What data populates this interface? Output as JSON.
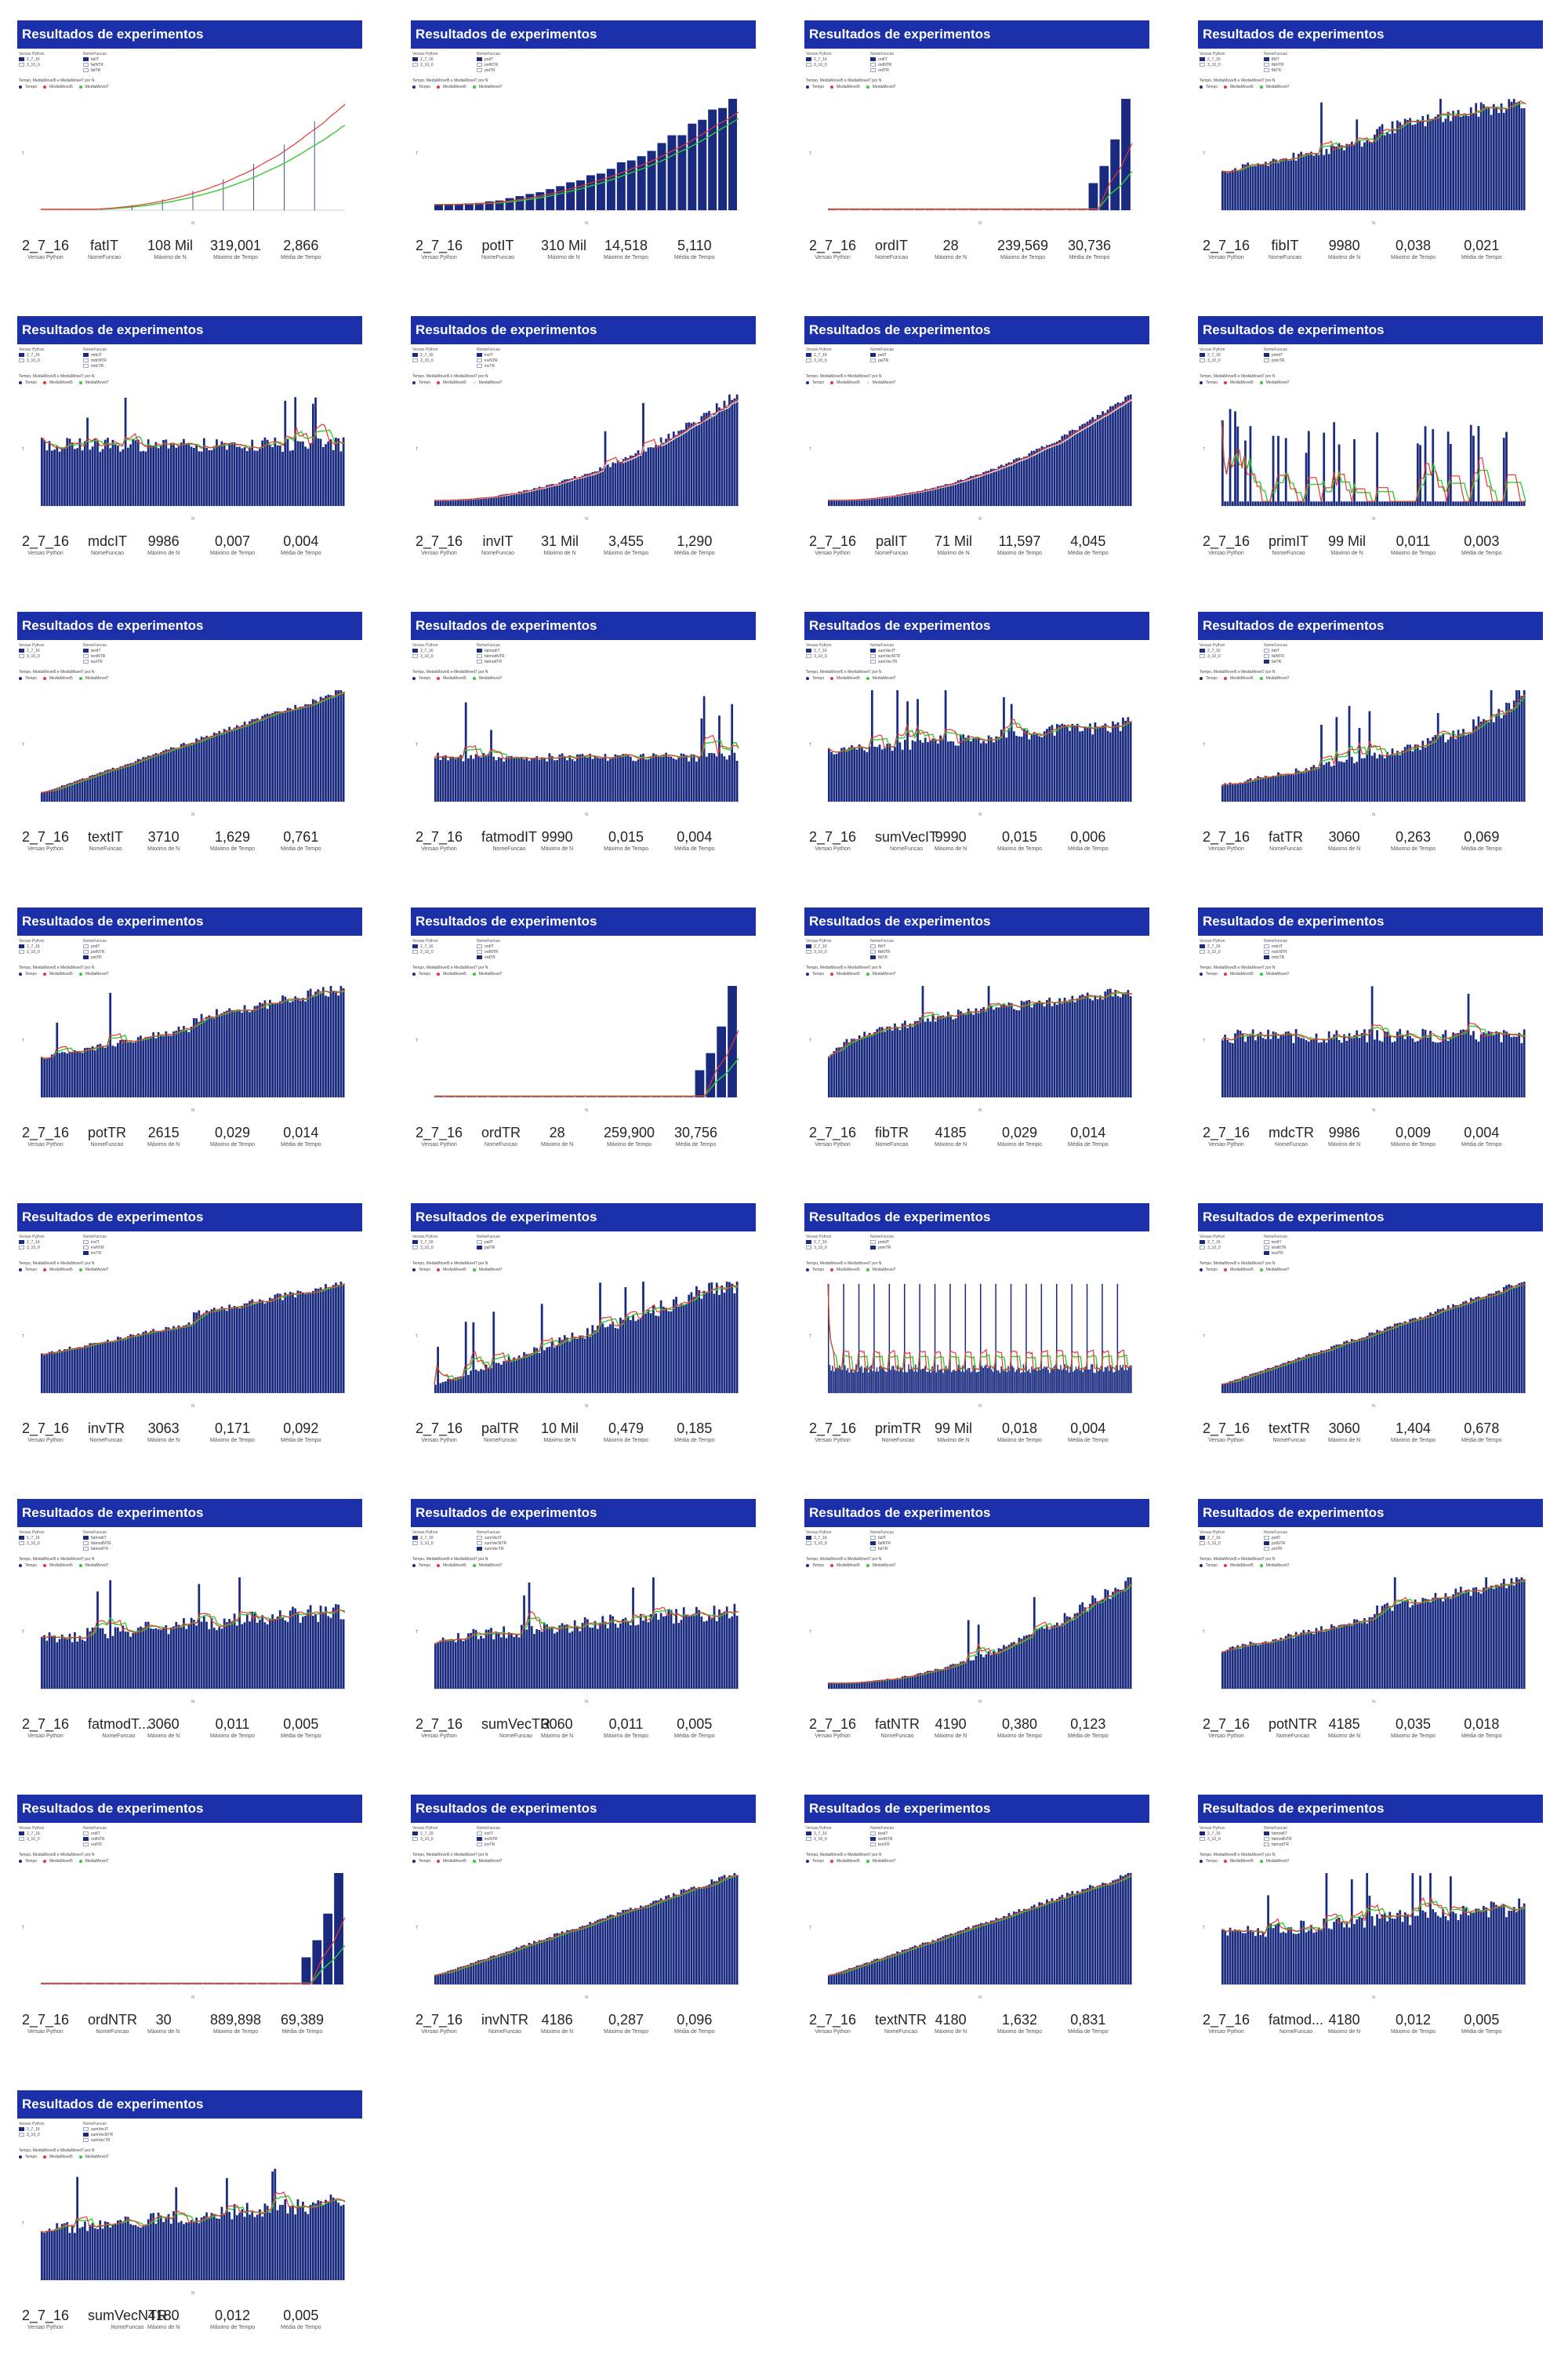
{
  "card_title": "Resultados de experimentos",
  "kpi_labels": {
    "version": "Versao Python",
    "function": "NomeFuncao",
    "n": "Máximo de N",
    "max_time": "Máximo de Tempo",
    "avg_time": "Média de Tempo"
  },
  "legend_headers": {
    "version": "Versao Python",
    "function": "NomeFuncao"
  },
  "version_entries": [
    "2_7_16",
    "3_10_0"
  ],
  "axis_label_y": "T",
  "axis_label_x": "N",
  "chart_title_text": "Tempo, MediaMovel5 e MediaMovel7 por N",
  "series_labels": {
    "time": "Tempo",
    "ma5": "MediaMovel5",
    "ma7": "MediaMovel7"
  },
  "colors": {
    "title_bar": "#1b2fa8",
    "bar": "#1a2b7f",
    "ma5": "#e53935",
    "ma7": "#33cc33",
    "white_line": "#e8e8e8"
  },
  "chart_data": [
    {
      "function": "fatIT",
      "version": "2_7_16",
      "max_n": "108 Mil",
      "max_time": "319,001",
      "avg_time": "2,866",
      "legend": [
        "fatIT",
        "fatNTR",
        "fatTR"
      ],
      "type": "line",
      "shape": "exp",
      "noise": 0.02,
      "spikes": 0.0,
      "xmax": 108000,
      "bars": false,
      "ma7": "#33cc33"
    },
    {
      "function": "potIT",
      "version": "2_7_16",
      "max_n": "310 Mil",
      "max_time": "14,518",
      "avg_time": "5,110",
      "legend": [
        "potIT",
        "potNTR",
        "potTR"
      ],
      "type": "bar",
      "shape": "quad",
      "noise": 0.04,
      "spikes": 0.0,
      "xmax": 310000,
      "bars": "few",
      "ma7": "#33cc33"
    },
    {
      "function": "ordIT",
      "version": "2_7_16",
      "max_n": "28",
      "max_time": "239,569",
      "avg_time": "30,736",
      "legend": [
        "ordIT",
        "ordNTR",
        "ordTR"
      ],
      "type": "bar",
      "shape": "steep",
      "noise": 0.0,
      "spikes": 0.0,
      "xmax": 28,
      "bars": "huge",
      "ma7": "#33cc33"
    },
    {
      "function": "fibIT",
      "version": "2_7_16",
      "max_n": "9980",
      "max_time": "0,038",
      "avg_time": "0,021",
      "legend": [
        "fibIT",
        "fibNTR",
        "fibTR"
      ],
      "type": "bar",
      "shape": "linear2",
      "noise": 0.08,
      "spikes": 0.02,
      "xmax": 9980,
      "bars": true,
      "ma7": "#33cc33"
    },
    {
      "function": "mdcIT",
      "version": "2_7_16",
      "max_n": "9986",
      "max_time": "0,007",
      "avg_time": "0,004",
      "legend": [
        "mdcIT",
        "mdcNTR",
        "mdcTR"
      ],
      "type": "bar",
      "shape": "flat",
      "noise": 0.12,
      "spikes": 0.05,
      "xmax": 9986,
      "bars": true,
      "ma7": "#33cc33"
    },
    {
      "function": "invIT",
      "version": "2_7_16",
      "max_n": "31 Mil",
      "max_time": "3,455",
      "avg_time": "1,290",
      "legend": [
        "invIT",
        "invNTR",
        "invTR"
      ],
      "type": "bar",
      "shape": "quad",
      "noise": 0.06,
      "spikes": 0.03,
      "xmax": 31000,
      "bars": true,
      "ma7": "#e8e8e8"
    },
    {
      "function": "palIT",
      "version": "2_7_16",
      "max_n": "71 Mil",
      "max_time": "11,597",
      "avg_time": "4,045",
      "legend": [
        "palIT",
        "palTR"
      ],
      "type": "bar",
      "shape": "quad",
      "noise": 0.03,
      "spikes": 0.0,
      "xmax": 71000,
      "bars": true,
      "ma7": "#e8e8e8"
    },
    {
      "function": "primIT",
      "version": "2_7_16",
      "max_n": "99 Mil",
      "max_time": "0,011",
      "avg_time": "0,003",
      "legend": [
        "primIT",
        "primTR"
      ],
      "type": "bar",
      "shape": "decay",
      "noise": 0.15,
      "spikes": 0.08,
      "xmax": 99000,
      "bars": "sparse",
      "ma7": "#33cc33"
    },
    {
      "function": "textIT",
      "version": "2_7_16",
      "max_n": "3710",
      "max_time": "1,629",
      "avg_time": "0,761",
      "legend": [
        "textIT",
        "textNTR",
        "textTR"
      ],
      "type": "bar",
      "shape": "linear",
      "noise": 0.03,
      "spikes": 0.0,
      "xmax": 3710,
      "bars": true,
      "ma7": "#33cc33"
    },
    {
      "function": "fatmodIT",
      "version": "2_7_16",
      "max_n": "9990",
      "max_time": "0,015",
      "avg_time": "0,004",
      "legend": [
        "fatmodIT",
        "fatmodNTR",
        "fatmodTR"
      ],
      "type": "bar",
      "shape": "flatlow",
      "noise": 0.1,
      "spikes": 0.04,
      "xmax": 9990,
      "bars": true,
      "ma7": "#33cc33"
    },
    {
      "function": "sumVecIT",
      "version": "2_7_16",
      "max_n": "9990",
      "max_time": "0,015",
      "avg_time": "0,006",
      "legend": [
        "sumVecIT",
        "sumVecNTR",
        "sumVecTR"
      ],
      "type": "bar",
      "shape": "flatrise",
      "noise": 0.1,
      "spikes": 0.04,
      "xmax": 9990,
      "bars": true,
      "ma7": "#33cc33"
    },
    {
      "function": "fatTR",
      "version": "2_7_16",
      "max_n": "3060",
      "max_time": "0,263",
      "avg_time": "0,069",
      "legend": [
        "fatIT",
        "fatNTR",
        "fatTR"
      ],
      "type": "bar",
      "shape": "exp2",
      "noise": 0.1,
      "spikes": 0.05,
      "xmax": 3060,
      "bars": true,
      "ma7": "#33cc33"
    },
    {
      "function": "potTR",
      "version": "2_7_16",
      "max_n": "2615",
      "max_time": "0,029",
      "avg_time": "0,014",
      "legend": [
        "potIT",
        "potNTR",
        "potTR"
      ],
      "type": "bar",
      "shape": "linear2",
      "noise": 0.06,
      "spikes": 0.02,
      "xmax": 2615,
      "bars": true,
      "ma7": "#33cc33"
    },
    {
      "function": "ordTR",
      "version": "2_7_16",
      "max_n": "28",
      "max_time": "259,900",
      "avg_time": "30,756",
      "legend": [
        "ordIT",
        "ordNTR",
        "ordTR"
      ],
      "type": "bar",
      "shape": "steep",
      "noise": 0.0,
      "spikes": 0.0,
      "xmax": 28,
      "bars": "huge",
      "ma7": "#33cc33"
    },
    {
      "function": "fibTR",
      "version": "2_7_16",
      "max_n": "4185",
      "max_time": "0,029",
      "avg_time": "0,014",
      "legend": [
        "fibIT",
        "fibNTR",
        "fibTR"
      ],
      "type": "bar",
      "shape": "log",
      "noise": 0.06,
      "spikes": 0.02,
      "xmax": 4185,
      "bars": true,
      "ma7": "#33cc33"
    },
    {
      "function": "mdcTR",
      "version": "2_7_16",
      "max_n": "9986",
      "max_time": "0,009",
      "avg_time": "0,004",
      "legend": [
        "mdcIT",
        "mdcNTR",
        "mdcTR"
      ],
      "type": "bar",
      "shape": "flat",
      "noise": 0.12,
      "spikes": 0.05,
      "xmax": 9986,
      "bars": true,
      "ma7": "#33cc33"
    },
    {
      "function": "invTR",
      "version": "2_7_16",
      "max_n": "3063",
      "max_time": "0,171",
      "avg_time": "0,092",
      "legend": [
        "invIT",
        "invNTR",
        "invTR"
      ],
      "type": "bar",
      "shape": "linear2",
      "noise": 0.04,
      "spikes": 0.01,
      "xmax": 3063,
      "bars": true,
      "ma7": "#33cc33"
    },
    {
      "function": "palTR",
      "version": "2_7_16",
      "max_n": "10 Mil",
      "max_time": "0,479",
      "avg_time": "0,185",
      "legend": [
        "palIT",
        "palTR"
      ],
      "type": "bar",
      "shape": "linear",
      "noise": 0.1,
      "spikes": 0.04,
      "xmax": 10000,
      "bars": true,
      "ma7": "#33cc33"
    },
    {
      "function": "primTR",
      "version": "2_7_16",
      "max_n": "99 Mil",
      "max_time": "0,018",
      "avg_time": "0,004",
      "legend": [
        "primIT",
        "primTR"
      ],
      "type": "bar",
      "shape": "comb",
      "noise": 0.05,
      "spikes": 0.0,
      "xmax": 99000,
      "bars": "comb",
      "ma7": "#33cc33"
    },
    {
      "function": "textTR",
      "version": "2_7_16",
      "max_n": "3060",
      "max_time": "1,404",
      "avg_time": "0,678",
      "legend": [
        "textIT",
        "textNTR",
        "textTR"
      ],
      "type": "bar",
      "shape": "linear",
      "noise": 0.03,
      "spikes": 0.0,
      "xmax": 3060,
      "bars": true,
      "ma7": "#33cc33"
    },
    {
      "function": "fatmodT...",
      "version": "2_7_16",
      "max_n": "3060",
      "max_time": "0,011",
      "avg_time": "0,005",
      "legend": [
        "fatmodIT",
        "fatmodNTR",
        "fatmodTR"
      ],
      "type": "bar",
      "shape": "flatrise",
      "noise": 0.12,
      "spikes": 0.05,
      "xmax": 3060,
      "bars": true,
      "ma7": "#33cc33"
    },
    {
      "function": "sumVecTR",
      "version": "2_7_16",
      "max_n": "3060",
      "max_time": "0,011",
      "avg_time": "0,005",
      "legend": [
        "sumVecIT",
        "sumVecNTR",
        "sumVecTR"
      ],
      "type": "bar",
      "shape": "flatrise",
      "noise": 0.12,
      "spikes": 0.05,
      "xmax": 3060,
      "bars": true,
      "ma7": "#33cc33"
    },
    {
      "function": "fatNTR",
      "version": "2_7_16",
      "max_n": "4190",
      "max_time": "0,380",
      "avg_time": "0,123",
      "legend": [
        "fatIT",
        "fatNTR",
        "fatTR"
      ],
      "type": "bar",
      "shape": "quad",
      "noise": 0.08,
      "spikes": 0.03,
      "xmax": 4190,
      "bars": true,
      "ma7": "#33cc33"
    },
    {
      "function": "potNTR",
      "version": "2_7_16",
      "max_n": "4185",
      "max_time": "0,035",
      "avg_time": "0,018",
      "legend": [
        "potIT",
        "potNTR",
        "potTR"
      ],
      "type": "bar",
      "shape": "linear2",
      "noise": 0.06,
      "spikes": 0.02,
      "xmax": 4185,
      "bars": true,
      "ma7": "#33cc33"
    },
    {
      "function": "ordNTR",
      "version": "2_7_16",
      "max_n": "30",
      "max_time": "889,898",
      "avg_time": "69,389",
      "legend": [
        "ordIT",
        "ordNTR",
        "ordTR"
      ],
      "type": "bar",
      "shape": "steep",
      "noise": 0.0,
      "spikes": 0.0,
      "xmax": 30,
      "bars": "huge",
      "ma7": "#33cc33"
    },
    {
      "function": "invNTR",
      "version": "2_7_16",
      "max_n": "4186",
      "max_time": "0,287",
      "avg_time": "0,096",
      "legend": [
        "invIT",
        "invNTR",
        "invTR"
      ],
      "type": "bar",
      "shape": "linear",
      "noise": 0.03,
      "spikes": 0.0,
      "xmax": 4186,
      "bars": true,
      "ma7": "#33cc33"
    },
    {
      "function": "textNTR",
      "version": "2_7_16",
      "max_n": "4180",
      "max_time": "1,632",
      "avg_time": "0,831",
      "legend": [
        "textIT",
        "textNTR",
        "textTR"
      ],
      "type": "bar",
      "shape": "linear",
      "noise": 0.03,
      "spikes": 0.0,
      "xmax": 4180,
      "bars": true,
      "ma7": "#33cc33"
    },
    {
      "function": "fatmod...",
      "version": "2_7_16",
      "max_n": "4180",
      "max_time": "0,012",
      "avg_time": "0,005",
      "legend": [
        "fatmodIT",
        "fatmodNTR",
        "fatmodTR"
      ],
      "type": "bar",
      "shape": "flatrise",
      "noise": 0.12,
      "spikes": 0.05,
      "xmax": 4180,
      "bars": true,
      "ma7": "#33cc33"
    },
    {
      "function": "sumVecNTR",
      "version": "2_7_16",
      "max_n": "4180",
      "max_time": "0,012",
      "avg_time": "0,005",
      "legend": [
        "sumVecIT",
        "sumVecNTR",
        "sumVecTR"
      ],
      "type": "bar",
      "shape": "flatrise",
      "noise": 0.12,
      "spikes": 0.05,
      "xmax": 4180,
      "bars": true,
      "ma7": "#33cc33"
    }
  ]
}
